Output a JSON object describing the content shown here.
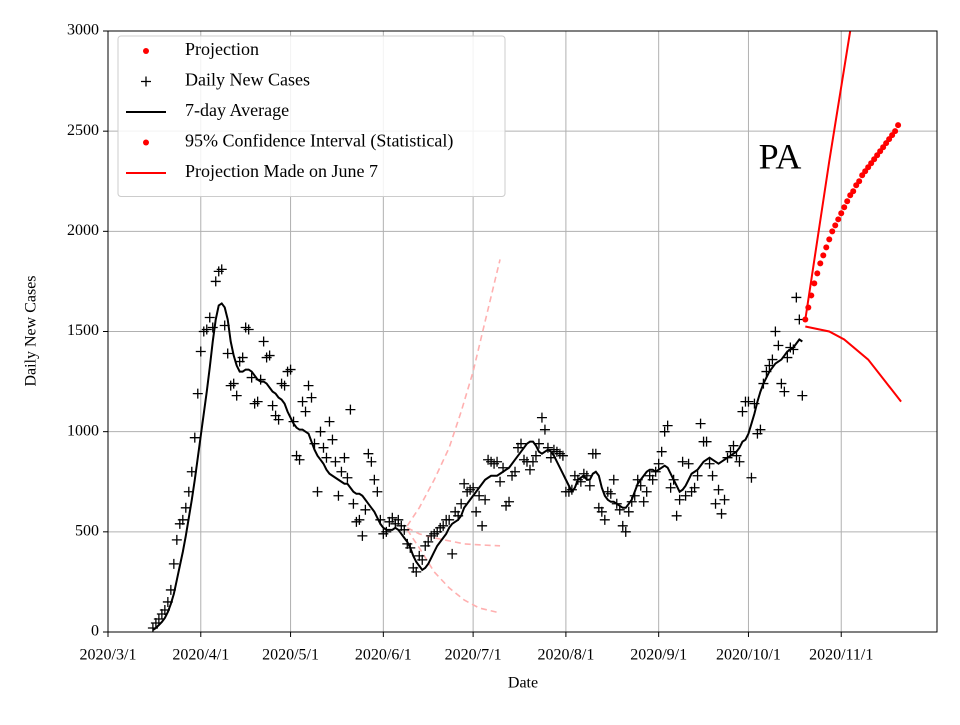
{
  "chart_data": {
    "type": "line",
    "annotation": "PA",
    "xlabel": "Date",
    "ylabel": "Daily New Cases",
    "xlim": [
      "2020-03-01",
      "2020-12-03"
    ],
    "xticks": [
      {
        "value": "2020-03-01",
        "label": "2020/3/1"
      },
      {
        "value": "2020-04-01",
        "label": "2020/4/1"
      },
      {
        "value": "2020-05-01",
        "label": "2020/5/1"
      },
      {
        "value": "2020-06-01",
        "label": "2020/6/1"
      },
      {
        "value": "2020-07-01",
        "label": "2020/7/1"
      },
      {
        "value": "2020-08-01",
        "label": "2020/8/1"
      },
      {
        "value": "2020-09-01",
        "label": "2020/9/1"
      },
      {
        "value": "2020-10-01",
        "label": "2020/10/1"
      },
      {
        "value": "2020-11-01",
        "label": "2020/11/1"
      }
    ],
    "ylim": [
      0,
      3000
    ],
    "yticks": [
      0,
      500,
      1000,
      1500,
      2000,
      2500,
      3000
    ],
    "grid": true,
    "legend": {
      "loc": "upper left",
      "entries": [
        {
          "label": "Projection",
          "marker": "dot",
          "color": "#ff0000"
        },
        {
          "label": "Daily New Cases",
          "marker": "plus",
          "color": "#000000"
        },
        {
          "label": "7-day Average",
          "marker": "line",
          "color": "#000000"
        },
        {
          "label": "95% Confidence Interval (Statistical)",
          "marker": "dot",
          "color": "#ff0000"
        },
        {
          "label": "Projection Made on June 7",
          "marker": "line",
          "color": "#ff0000"
        }
      ]
    },
    "x": [
      "2020-03-16",
      "2020-03-17",
      "2020-03-18",
      "2020-03-19",
      "2020-03-20",
      "2020-03-21",
      "2020-03-22",
      "2020-03-23",
      "2020-03-24",
      "2020-03-25",
      "2020-03-26",
      "2020-03-27",
      "2020-03-28",
      "2020-03-29",
      "2020-03-30",
      "2020-03-31",
      "2020-04-01",
      "2020-04-02",
      "2020-04-03",
      "2020-04-04",
      "2020-04-05",
      "2020-04-06",
      "2020-04-07",
      "2020-04-08",
      "2020-04-09",
      "2020-04-10",
      "2020-04-11",
      "2020-04-12",
      "2020-04-13",
      "2020-04-14",
      "2020-04-15",
      "2020-04-16",
      "2020-04-17",
      "2020-04-18",
      "2020-04-19",
      "2020-04-20",
      "2020-04-21",
      "2020-04-22",
      "2020-04-23",
      "2020-04-24",
      "2020-04-25",
      "2020-04-26",
      "2020-04-27",
      "2020-04-28",
      "2020-04-29",
      "2020-04-30",
      "2020-05-01",
      "2020-05-02",
      "2020-05-03",
      "2020-05-04",
      "2020-05-05",
      "2020-05-06",
      "2020-05-07",
      "2020-05-08",
      "2020-05-09",
      "2020-05-10",
      "2020-05-11",
      "2020-05-12",
      "2020-05-13",
      "2020-05-14",
      "2020-05-15",
      "2020-05-16",
      "2020-05-17",
      "2020-05-18",
      "2020-05-19",
      "2020-05-20",
      "2020-05-21",
      "2020-05-22",
      "2020-05-23",
      "2020-05-24",
      "2020-05-25",
      "2020-05-26",
      "2020-05-27",
      "2020-05-28",
      "2020-05-29",
      "2020-05-30",
      "2020-05-31",
      "2020-06-01",
      "2020-06-02",
      "2020-06-03",
      "2020-06-04",
      "2020-06-05",
      "2020-06-06",
      "2020-06-07",
      "2020-06-08",
      "2020-06-09",
      "2020-06-10",
      "2020-06-11",
      "2020-06-12",
      "2020-06-13",
      "2020-06-14",
      "2020-06-15",
      "2020-06-16",
      "2020-06-17",
      "2020-06-18",
      "2020-06-19",
      "2020-06-20",
      "2020-06-21",
      "2020-06-22",
      "2020-06-23",
      "2020-06-24",
      "2020-06-25",
      "2020-06-26",
      "2020-06-27",
      "2020-06-28",
      "2020-06-29",
      "2020-06-30",
      "2020-07-01",
      "2020-07-02",
      "2020-07-03",
      "2020-07-04",
      "2020-07-05",
      "2020-07-06",
      "2020-07-07",
      "2020-07-08",
      "2020-07-09",
      "2020-07-10",
      "2020-07-11",
      "2020-07-12",
      "2020-07-13",
      "2020-07-14",
      "2020-07-15",
      "2020-07-16",
      "2020-07-17",
      "2020-07-18",
      "2020-07-19",
      "2020-07-20",
      "2020-07-21",
      "2020-07-22",
      "2020-07-23",
      "2020-07-24",
      "2020-07-25",
      "2020-07-26",
      "2020-07-27",
      "2020-07-28",
      "2020-07-29",
      "2020-07-30",
      "2020-07-31",
      "2020-08-01",
      "2020-08-02",
      "2020-08-03",
      "2020-08-04",
      "2020-08-05",
      "2020-08-06",
      "2020-08-07",
      "2020-08-08",
      "2020-08-09",
      "2020-08-10",
      "2020-08-11",
      "2020-08-12",
      "2020-08-13",
      "2020-08-14",
      "2020-08-15",
      "2020-08-16",
      "2020-08-17",
      "2020-08-18",
      "2020-08-19",
      "2020-08-20",
      "2020-08-21",
      "2020-08-22",
      "2020-08-23",
      "2020-08-24",
      "2020-08-25",
      "2020-08-26",
      "2020-08-27",
      "2020-08-28",
      "2020-08-29",
      "2020-08-30",
      "2020-08-31",
      "2020-09-01",
      "2020-09-02",
      "2020-09-03",
      "2020-09-04",
      "2020-09-05",
      "2020-09-06",
      "2020-09-07",
      "2020-09-08",
      "2020-09-09",
      "2020-09-10",
      "2020-09-11",
      "2020-09-12",
      "2020-09-13",
      "2020-09-14",
      "2020-09-15",
      "2020-09-16",
      "2020-09-17",
      "2020-09-18",
      "2020-09-19",
      "2020-09-20",
      "2020-09-21",
      "2020-09-22",
      "2020-09-23",
      "2020-09-24",
      "2020-09-25",
      "2020-09-26",
      "2020-09-27",
      "2020-09-28",
      "2020-09-29",
      "2020-09-30",
      "2020-10-01",
      "2020-10-02",
      "2020-10-03",
      "2020-10-04",
      "2020-10-05",
      "2020-10-06",
      "2020-10-07",
      "2020-10-08",
      "2020-10-09",
      "2020-10-10",
      "2020-10-11",
      "2020-10-12",
      "2020-10-13",
      "2020-10-14",
      "2020-10-15",
      "2020-10-16",
      "2020-10-17",
      "2020-10-18",
      "2020-10-19"
    ],
    "series": [
      {
        "color": "#ffb0b0",
        "linestyle": "dashed",
        "x": [
          "2020-06-09",
          "2020-06-13",
          "2020-06-18",
          "2020-06-23",
          "2020-06-27",
          "2020-07-01",
          "2020-07-05",
          "2020-07-10"
        ],
        "values": [
          530,
          620,
          760,
          920,
          1100,
          1300,
          1550,
          1860
        ]
      },
      {
        "color": "#ffb0b0",
        "linestyle": "dashed",
        "x": [
          "2020-06-09",
          "2020-06-13",
          "2020-06-18",
          "2020-06-23",
          "2020-06-28",
          "2020-07-03",
          "2020-07-10"
        ],
        "values": [
          520,
          490,
          470,
          455,
          440,
          435,
          430
        ]
      },
      {
        "color": "#ffb0b0",
        "linestyle": "dashed",
        "x": [
          "2020-06-09",
          "2020-06-13",
          "2020-06-18",
          "2020-06-23",
          "2020-06-28",
          "2020-07-03",
          "2020-07-10"
        ],
        "values": [
          510,
          420,
          300,
          220,
          160,
          120,
          95
        ]
      },
      {
        "color": "#000000",
        "marker": "plus",
        "values": [
          20,
          45,
          65,
          90,
          110,
          150,
          210,
          340,
          460,
          540,
          560,
          620,
          700,
          800,
          970,
          1190,
          1400,
          1500,
          1510,
          1570,
          1520,
          1750,
          1800,
          1810,
          1530,
          1390,
          1230,
          1240,
          1180,
          1350,
          1370,
          1520,
          1510,
          1270,
          1140,
          1150,
          1260,
          1450,
          1370,
          1380,
          1130,
          1080,
          1060,
          1240,
          1230,
          1300,
          1310,
          1050,
          880,
          860,
          1150,
          1100,
          1230,
          1170,
          940,
          700,
          1000,
          920,
          870,
          1050,
          960,
          850,
          680,
          800,
          870,
          770,
          1110,
          640,
          550,
          560,
          480,
          610,
          890,
          850,
          760,
          700,
          560,
          490,
          500,
          550,
          570,
          540,
          560,
          530,
          510,
          440,
          420,
          320,
          300,
          380,
          360,
          430,
          450,
          480,
          490,
          500,
          520,
          530,
          560,
          560,
          390,
          600,
          580,
          640,
          740,
          700,
          710,
          720,
          600,
          680,
          530,
          660,
          860,
          850,
          840,
          850,
          750,
          820,
          630,
          650,
          780,
          800,
          920,
          940,
          860,
          850,
          810,
          850,
          880,
          940,
          1070,
          1010,
          920,
          870,
          910,
          900,
          890,
          880,
          700,
          700,
          710,
          780,
          760,
          750,
          790,
          780,
          730,
          890,
          890,
          620,
          600,
          560,
          700,
          690,
          760,
          640,
          610,
          530,
          500,
          600,
          650,
          680,
          760,
          730,
          650,
          700,
          780,
          760,
          800,
          840,
          900,
          1000,
          1030,
          720,
          760,
          580,
          660,
          850,
          680,
          840,
          700,
          720,
          780,
          1040,
          950,
          950,
          840,
          780,
          640,
          710,
          590,
          660,
          870,
          900,
          930,
          880,
          850,
          1100,
          1150,
          1150,
          770,
          1140,
          990,
          1010,
          1240,
          1300,
          1330,
          1360,
          1500,
          1430,
          1240,
          1200,
          1370,
          1420,
          1410,
          1670,
          1560,
          1180
        ]
      },
      {
        "color": "#000000",
        "linestyle": "solid",
        "values": [
          10,
          20,
          35,
          50,
          70,
          100,
          140,
          190,
          260,
          330,
          400,
          480,
          570,
          660,
          760,
          870,
          980,
          1090,
          1200,
          1320,
          1450,
          1560,
          1630,
          1640,
          1620,
          1560,
          1450,
          1380,
          1330,
          1300,
          1300,
          1310,
          1310,
          1300,
          1280,
          1260,
          1250,
          1250,
          1240,
          1220,
          1200,
          1190,
          1170,
          1160,
          1140,
          1100,
          1070,
          1040,
          1020,
          1010,
          1010,
          1000,
          990,
          950,
          910,
          880,
          860,
          840,
          810,
          790,
          780,
          770,
          760,
          750,
          740,
          740,
          720,
          700,
          690,
          690,
          680,
          660,
          640,
          620,
          600,
          570,
          540,
          520,
          510,
          510,
          510,
          520,
          510,
          490,
          470,
          450,
          420,
          380,
          350,
          330,
          310,
          320,
          340,
          370,
          400,
          430,
          450,
          470,
          490,
          520,
          540,
          550,
          560,
          580,
          620,
          640,
          660,
          680,
          700,
          720,
          740,
          760,
          770,
          780,
          780,
          780,
          790,
          800,
          810,
          820,
          840,
          860,
          880,
          900,
          920,
          940,
          950,
          950,
          930,
          900,
          890,
          900,
          910,
          900,
          880,
          850,
          820,
          790,
          760,
          730,
          700,
          720,
          760,
          770,
          780,
          760,
          760,
          790,
          800,
          780,
          720,
          680,
          660,
          650,
          650,
          640,
          630,
          620,
          620,
          640,
          660,
          700,
          740,
          760,
          780,
          800,
          810,
          810,
          800,
          810,
          820,
          830,
          820,
          790,
          760,
          730,
          700,
          710,
          730,
          760,
          790,
          800,
          810,
          830,
          850,
          860,
          870,
          860,
          850,
          840,
          850,
          860,
          870,
          880,
          890,
          900,
          920,
          950,
          960,
          990,
          1040,
          1090,
          1150,
          1200,
          1240,
          1270,
          1300,
          1320,
          1340,
          1350,
          1360,
          1380,
          1400,
          1410,
          1420,
          1440,
          1460,
          1450
        ]
      },
      {
        "color": "#ff0000",
        "linestyle": "solid",
        "x": [
          "2020-10-20",
          "2020-10-28",
          "2020-11-04"
        ],
        "values": [
          1560,
          2350,
          3000
        ]
      },
      {
        "color": "#ff0000",
        "linestyle": "solid",
        "x": [
          "2020-10-20",
          "2020-10-28",
          "2020-11-02",
          "2020-11-10",
          "2020-11-21"
        ],
        "values": [
          1525,
          1500,
          1460,
          1360,
          1150
        ]
      },
      {
        "color": "#ff0000",
        "marker": "dot",
        "x": [
          "2020-10-20",
          "2020-10-21",
          "2020-10-22",
          "2020-10-23",
          "2020-10-24",
          "2020-10-25",
          "2020-10-26",
          "2020-10-27",
          "2020-10-28",
          "2020-10-29",
          "2020-10-30",
          "2020-10-31",
          "2020-11-01",
          "2020-11-02",
          "2020-11-03",
          "2020-11-04",
          "2020-11-05",
          "2020-11-06",
          "2020-11-07",
          "2020-11-08",
          "2020-11-09",
          "2020-11-10",
          "2020-11-11",
          "2020-11-12",
          "2020-11-13",
          "2020-11-14",
          "2020-11-15",
          "2020-11-16",
          "2020-11-17",
          "2020-11-18",
          "2020-11-19",
          "2020-11-20"
        ],
        "values": [
          1560,
          1620,
          1680,
          1740,
          1790,
          1840,
          1880,
          1920,
          1960,
          2000,
          2030,
          2060,
          2090,
          2120,
          2150,
          2180,
          2200,
          2230,
          2250,
          2280,
          2300,
          2320,
          2340,
          2360,
          2380,
          2400,
          2420,
          2440,
          2460,
          2480,
          2500,
          2530
        ]
      }
    ]
  }
}
